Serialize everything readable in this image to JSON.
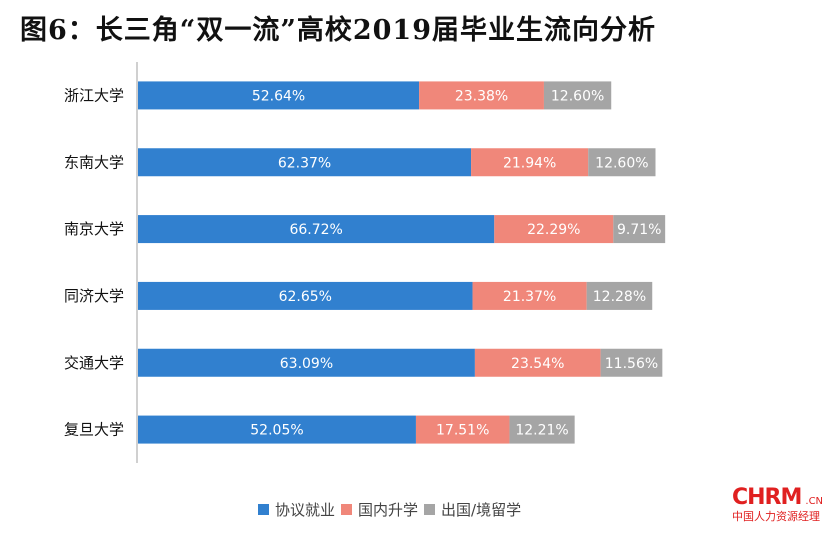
{
  "title": "图6：长三角“双一流”高校2019届毕业生流向分析",
  "chart_data": {
    "type": "bar",
    "orientation": "horizontal",
    "stacked": true,
    "title": "图6：长三角“双一流”高校2019届毕业生流向分析",
    "xlabel": "",
    "ylabel": "",
    "xlim": [
      0,
      100
    ],
    "grid": false,
    "legend_position": "bottom",
    "categories": [
      "浙江大学",
      "东南大学",
      "南京大学",
      "同济大学",
      "交通大学",
      "复旦大学"
    ],
    "series": [
      {
        "name": "协议就业",
        "color": "#3180cf",
        "values": [
          52.64,
          62.37,
          66.72,
          62.65,
          63.09,
          52.05
        ],
        "labels": [
          "52.64%",
          "62.37%",
          "66.72%",
          "62.65%",
          "63.09%",
          "52.05%"
        ]
      },
      {
        "name": "国内升学",
        "color": "#f0877a",
        "values": [
          23.38,
          21.94,
          22.29,
          21.37,
          23.54,
          17.51
        ],
        "labels": [
          "23.38%",
          "21.94%",
          "22.29%",
          "21.37%",
          "23.54%",
          "17.51%"
        ]
      },
      {
        "name": "出国/境留学",
        "color": "#a5a5a5",
        "values": [
          12.6,
          12.6,
          9.71,
          12.28,
          11.56,
          12.21
        ],
        "labels": [
          "12.60%",
          "12.60%",
          "9.71%",
          "12.28%",
          "11.56%",
          "12.21%"
        ]
      }
    ]
  },
  "watermark": {
    "main": "CHRM",
    "suffix": ".CN",
    "sub": "中国人力资源经理"
  }
}
